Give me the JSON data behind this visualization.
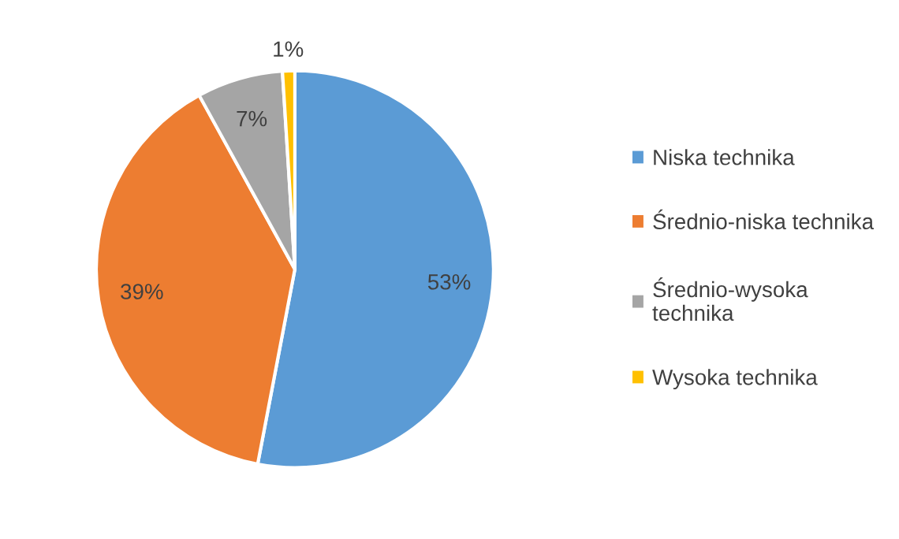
{
  "chart_data": {
    "type": "pie",
    "categories": [
      "Niska technika",
      "Średnio-niska technika",
      "Średnio-wysoka technika",
      "Wysoka technika"
    ],
    "values": [
      53,
      39,
      7,
      1
    ],
    "value_labels": [
      "53%",
      "39%",
      "7%",
      "1%"
    ],
    "colors": [
      "#5b9bd5",
      "#ed7d31",
      "#a5a5a5",
      "#ffc000"
    ],
    "legend": "right"
  }
}
